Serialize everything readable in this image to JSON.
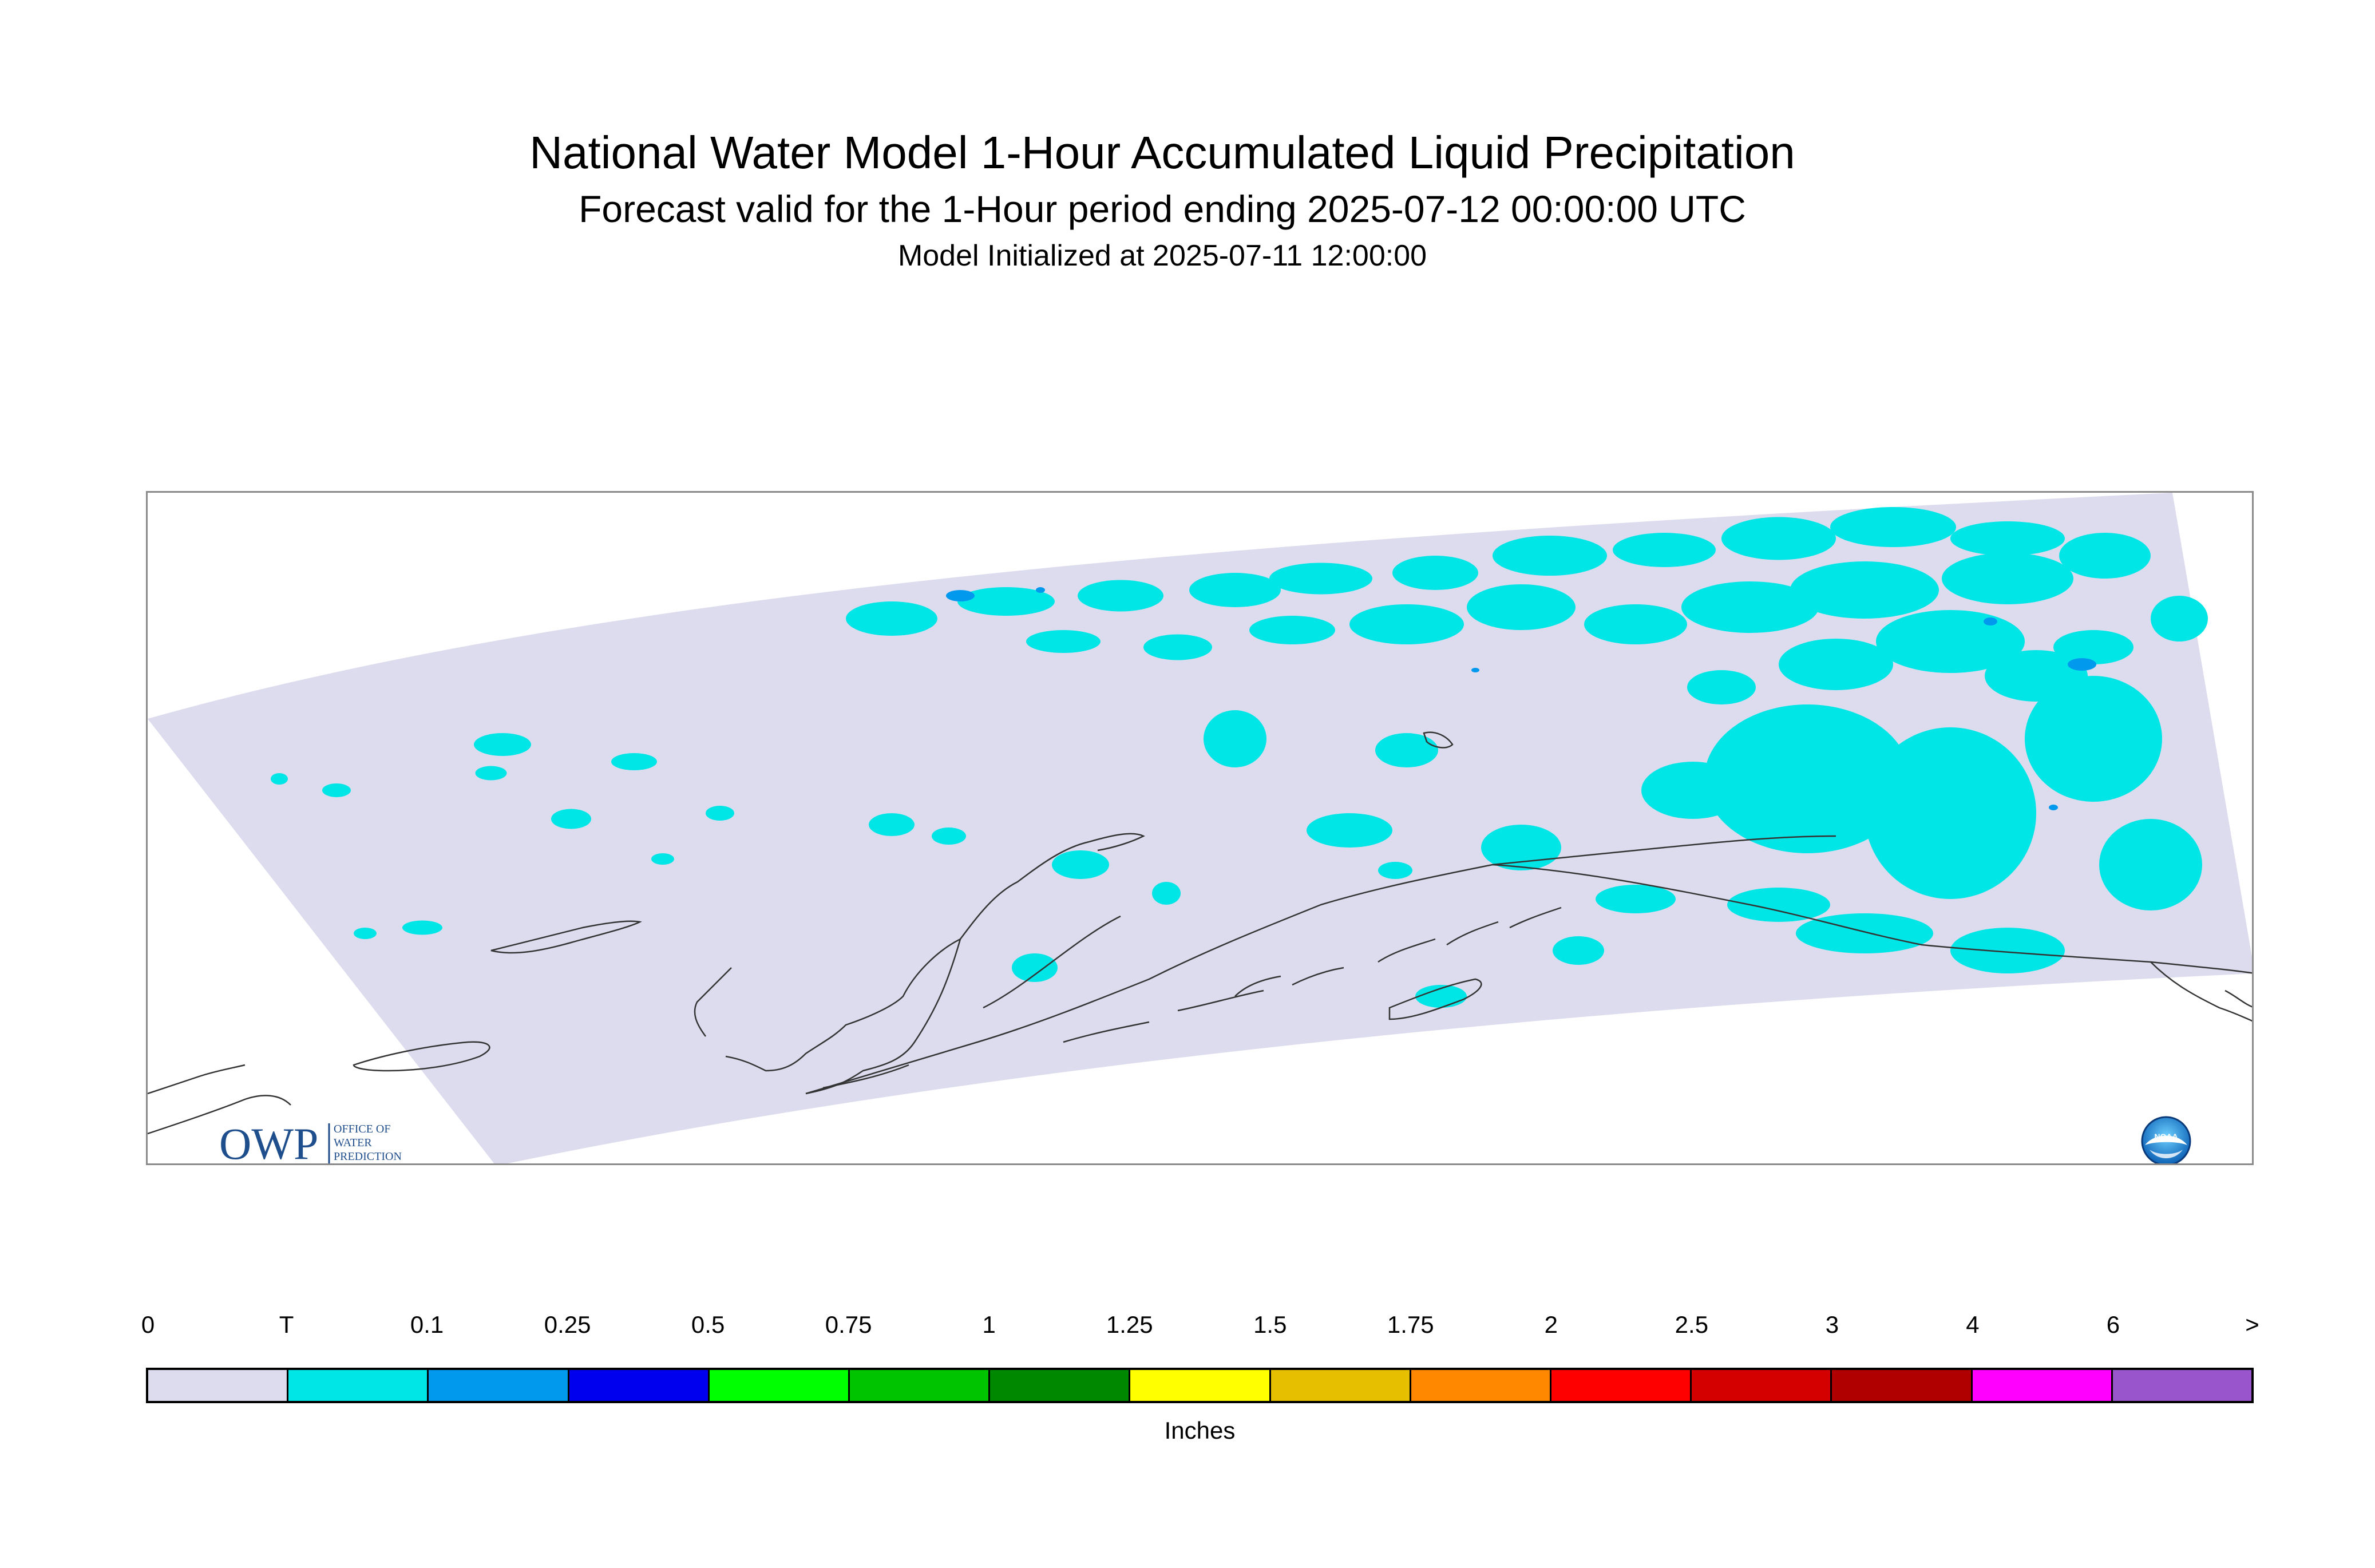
{
  "header": {
    "title": "National Water Model 1-Hour Accumulated Liquid Precipitation",
    "subtitle": "Forecast valid for the 1-Hour period ending 2025-07-12 00:00:00 UTC",
    "init": "Model Initialized at 2025-07-11 12:00:00"
  },
  "map": {
    "domain_color": "#dcdcee",
    "trace_color": "#00e5e5",
    "light_blue_color": "#0099ee",
    "coast_color": "#333333",
    "owp_logo": {
      "text": "OWP",
      "line1": "OFFICE OF",
      "line2": "WATER",
      "line3": "PREDICTION",
      "color": "#1f4e8c"
    },
    "noaa_logo": {
      "text": "NOAA",
      "icon": "noaa-seal-icon"
    }
  },
  "legend": {
    "labels": [
      "0",
      "T",
      "0.1",
      "0.25",
      "0.5",
      "0.75",
      "1",
      "1.25",
      "1.5",
      "1.75",
      "2",
      "2.5",
      "3",
      "4",
      "6",
      ">"
    ],
    "colors": [
      "#dcdcee",
      "#00e5e5",
      "#0099ee",
      "#0000ee",
      "#00ff00",
      "#00c400",
      "#008800",
      "#ffff00",
      "#e6bf00",
      "#ff8800",
      "#ff0000",
      "#d40000",
      "#b00000",
      "#ff00ff",
      "#9955cc"
    ],
    "units": "Inches"
  }
}
